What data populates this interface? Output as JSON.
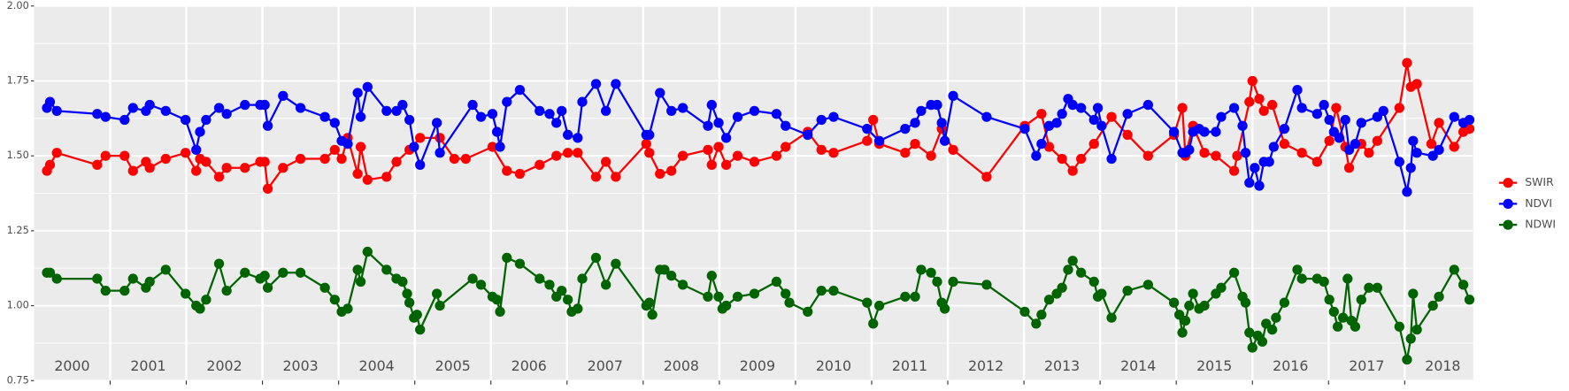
{
  "chart_data": {
    "type": "line",
    "xlim": [
      2000,
      2018.9
    ],
    "xticks": [
      2001,
      2002,
      2003,
      2004,
      2005,
      2006,
      2007,
      2008,
      2009,
      2010,
      2011,
      2012,
      2013,
      2014,
      2015,
      2016,
      2017,
      2018
    ],
    "year_labels": [
      "2000",
      "2001",
      "2002",
      "2003",
      "2004",
      "2005",
      "2006",
      "2007",
      "2008",
      "2009",
      "2010",
      "2011",
      "2012",
      "2013",
      "2014",
      "2015",
      "2016",
      "2017",
      "2018"
    ],
    "ylim": [
      0.75,
      2.0
    ],
    "yticks": [
      0.75,
      {
        "value": 1.0,
        "label": "1.00"
      },
      {
        "value": 1.25,
        "label": "1.25"
      },
      {
        "value": 1.5,
        "label": "1.50"
      },
      {
        "value": 1.75,
        "label": "1.75"
      },
      {
        "value": 2.0,
        "label": "2.00"
      }
    ],
    "y_minor_ticks": [
      0.875,
      1.125,
      1.375,
      1.625,
      1.875
    ],
    "grid": true,
    "legend": "right",
    "series": [
      {
        "name": "SWIR",
        "color": "#ff0000",
        "x": [
          2000.17,
          2000.21,
          2000.3,
          2000.83,
          2000.94,
          2001.19,
          2001.3,
          2001.47,
          2001.52,
          2001.73,
          2001.99,
          2002.13,
          2002.18,
          2002.26,
          2002.43,
          2002.53,
          2002.77,
          2002.97,
          2003.03,
          2003.07,
          2003.27,
          2003.5,
          2003.82,
          2003.95,
          2004.04,
          2004.12,
          2004.25,
          2004.29,
          2004.38,
          2004.63,
          2004.76,
          2004.93,
          2005.07,
          2005.33,
          2005.52,
          2005.67,
          2006.02,
          2006.21,
          2006.38,
          2006.64,
          2006.86,
          2007.01,
          2007.14,
          2007.38,
          2007.51,
          2007.64,
          2008.04,
          2008.08,
          2008.22,
          2008.37,
          2008.52,
          2008.85,
          2008.9,
          2008.99,
          2009.09,
          2009.24,
          2009.46,
          2009.75,
          2009.87,
          2010.16,
          2010.34,
          2010.5,
          2010.94,
          2011.02,
          2011.1,
          2011.44,
          2011.57,
          2011.78,
          2011.92,
          2012.07,
          2012.51,
          2013.01,
          2013.23,
          2013.33,
          2013.5,
          2013.64,
          2013.75,
          2013.92,
          2014.15,
          2014.36,
          2014.63,
          2014.97,
          2015.08,
          2015.12,
          2015.22,
          2015.37,
          2015.52,
          2015.76,
          2015.8,
          2015.96,
          2016.0,
          2016.09,
          2016.15,
          2016.26,
          2016.42,
          2016.65,
          2016.85,
          2017.01,
          2017.1,
          2017.22,
          2017.27,
          2017.43,
          2017.53,
          2017.64,
          2017.93,
          2018.03,
          2018.08,
          2018.16,
          2018.35,
          2018.45,
          2018.65,
          2018.77,
          2018.85
        ],
        "values": [
          1.45,
          1.47,
          1.51,
          1.47,
          1.5,
          1.5,
          1.45,
          1.48,
          1.46,
          1.49,
          1.51,
          1.45,
          1.49,
          1.48,
          1.43,
          1.46,
          1.46,
          1.48,
          1.48,
          1.39,
          1.46,
          1.49,
          1.49,
          1.52,
          1.49,
          1.56,
          1.44,
          1.53,
          1.42,
          1.43,
          1.48,
          1.52,
          1.56,
          1.56,
          1.49,
          1.49,
          1.53,
          1.45,
          1.44,
          1.47,
          1.5,
          1.51,
          1.51,
          1.43,
          1.48,
          1.43,
          1.54,
          1.51,
          1.44,
          1.45,
          1.5,
          1.52,
          1.47,
          1.53,
          1.47,
          1.5,
          1.48,
          1.5,
          1.53,
          1.58,
          1.52,
          1.51,
          1.55,
          1.62,
          1.54,
          1.51,
          1.54,
          1.5,
          1.59,
          1.52,
          1.43,
          1.6,
          1.64,
          1.53,
          1.49,
          1.45,
          1.49,
          1.54,
          1.63,
          1.57,
          1.5,
          1.57,
          1.66,
          1.5,
          1.6,
          1.51,
          1.5,
          1.45,
          1.5,
          1.68,
          1.75,
          1.69,
          1.65,
          1.67,
          1.54,
          1.51,
          1.48,
          1.55,
          1.66,
          1.53,
          1.46,
          1.54,
          1.51,
          1.55,
          1.66,
          1.81,
          1.73,
          1.74,
          1.54,
          1.61,
          1.53,
          1.58,
          1.59
        ]
      },
      {
        "name": "NDVI",
        "color": "#0000ff",
        "x": [
          2000.17,
          2000.21,
          2000.3,
          2000.83,
          2000.94,
          2001.19,
          2001.3,
          2001.47,
          2001.52,
          2001.73,
          2001.99,
          2002.13,
          2002.18,
          2002.26,
          2002.43,
          2002.53,
          2002.77,
          2002.97,
          2003.03,
          2003.07,
          2003.27,
          2003.5,
          2003.82,
          2003.95,
          2004.04,
          2004.12,
          2004.25,
          2004.29,
          2004.38,
          2004.63,
          2004.76,
          2004.84,
          2004.93,
          2004.99,
          2005.07,
          2005.29,
          2005.33,
          2005.76,
          2005.87,
          2006.02,
          2006.08,
          2006.12,
          2006.21,
          2006.38,
          2006.64,
          2006.77,
          2006.86,
          2006.93,
          2007.01,
          2007.14,
          2007.2,
          2007.38,
          2007.51,
          2007.64,
          2008.04,
          2008.08,
          2008.22,
          2008.37,
          2008.52,
          2008.85,
          2008.9,
          2008.99,
          2009.09,
          2009.24,
          2009.46,
          2009.75,
          2009.87,
          2010.16,
          2010.34,
          2010.5,
          2010.94,
          2011.1,
          2011.44,
          2011.57,
          2011.65,
          2011.78,
          2011.86,
          2011.92,
          2011.96,
          2012.07,
          2012.51,
          2013.01,
          2013.16,
          2013.23,
          2013.33,
          2013.43,
          2013.5,
          2013.58,
          2013.64,
          2013.75,
          2013.92,
          2013.97,
          2014.02,
          2014.15,
          2014.36,
          2014.63,
          2014.97,
          2015.08,
          2015.12,
          2015.17,
          2015.22,
          2015.3,
          2015.37,
          2015.52,
          2015.59,
          2015.76,
          2015.87,
          2015.91,
          2015.96,
          2016.03,
          2016.09,
          2016.15,
          2016.22,
          2016.28,
          2016.42,
          2016.59,
          2016.65,
          2016.85,
          2016.94,
          2017.01,
          2017.07,
          2017.14,
          2017.22,
          2017.27,
          2017.35,
          2017.43,
          2017.64,
          2017.72,
          2017.93,
          2018.03,
          2018.08,
          2018.11,
          2018.16,
          2018.37,
          2018.45,
          2018.65,
          2018.77,
          2018.85
        ],
        "values": [
          1.66,
          1.68,
          1.65,
          1.64,
          1.63,
          1.62,
          1.66,
          1.65,
          1.67,
          1.65,
          1.62,
          1.52,
          1.58,
          1.62,
          1.66,
          1.64,
          1.67,
          1.67,
          1.67,
          1.6,
          1.7,
          1.66,
          1.63,
          1.61,
          1.55,
          1.54,
          1.71,
          1.63,
          1.73,
          1.65,
          1.65,
          1.67,
          1.62,
          1.53,
          1.47,
          1.61,
          1.51,
          1.67,
          1.63,
          1.64,
          1.58,
          1.53,
          1.68,
          1.72,
          1.65,
          1.64,
          1.61,
          1.65,
          1.57,
          1.56,
          1.68,
          1.74,
          1.65,
          1.74,
          1.57,
          1.57,
          1.71,
          1.65,
          1.66,
          1.6,
          1.67,
          1.61,
          1.56,
          1.63,
          1.65,
          1.64,
          1.6,
          1.57,
          1.62,
          1.63,
          1.59,
          1.55,
          1.59,
          1.61,
          1.65,
          1.67,
          1.67,
          1.61,
          1.55,
          1.7,
          1.63,
          1.59,
          1.5,
          1.54,
          1.6,
          1.61,
          1.64,
          1.69,
          1.67,
          1.66,
          1.62,
          1.66,
          1.6,
          1.49,
          1.64,
          1.67,
          1.58,
          1.51,
          1.51,
          1.52,
          1.58,
          1.59,
          1.58,
          1.58,
          1.63,
          1.66,
          1.6,
          1.51,
          1.41,
          1.46,
          1.4,
          1.48,
          1.48,
          1.53,
          1.59,
          1.72,
          1.66,
          1.64,
          1.67,
          1.62,
          1.58,
          1.56,
          1.62,
          1.52,
          1.54,
          1.61,
          1.63,
          1.65,
          1.48,
          1.38,
          1.46,
          1.55,
          1.51,
          1.5,
          1.52,
          1.63,
          1.61,
          1.62
        ]
      },
      {
        "name": "NDWI",
        "color": "#006400",
        "x": [
          2000.17,
          2000.21,
          2000.3,
          2000.83,
          2000.94,
          2001.19,
          2001.3,
          2001.47,
          2001.52,
          2001.73,
          2001.99,
          2002.13,
          2002.18,
          2002.26,
          2002.43,
          2002.53,
          2002.77,
          2002.97,
          2003.03,
          2003.07,
          2003.27,
          2003.5,
          2003.82,
          2003.95,
          2004.04,
          2004.12,
          2004.25,
          2004.29,
          2004.38,
          2004.63,
          2004.76,
          2004.84,
          2004.9,
          2004.93,
          2004.99,
          2005.03,
          2005.07,
          2005.29,
          2005.33,
          2005.76,
          2005.87,
          2006.02,
          2006.08,
          2006.12,
          2006.21,
          2006.38,
          2006.64,
          2006.77,
          2006.86,
          2006.93,
          2007.01,
          2007.06,
          2007.14,
          2007.2,
          2007.38,
          2007.51,
          2007.64,
          2008.04,
          2008.08,
          2008.12,
          2008.22,
          2008.28,
          2008.37,
          2008.52,
          2008.85,
          2008.9,
          2008.99,
          2009.04,
          2009.09,
          2009.24,
          2009.46,
          2009.75,
          2009.87,
          2009.92,
          2010.16,
          2010.34,
          2010.5,
          2010.94,
          2011.02,
          2011.1,
          2011.44,
          2011.57,
          2011.65,
          2011.78,
          2011.86,
          2011.92,
          2011.96,
          2012.07,
          2012.51,
          2013.01,
          2013.16,
          2013.23,
          2013.33,
          2013.43,
          2013.5,
          2013.58,
          2013.64,
          2013.75,
          2013.92,
          2013.97,
          2014.02,
          2014.15,
          2014.36,
          2014.63,
          2014.97,
          2015.04,
          2015.08,
          2015.12,
          2015.17,
          2015.22,
          2015.3,
          2015.37,
          2015.52,
          2015.59,
          2015.76,
          2015.87,
          2015.91,
          2015.96,
          2016.0,
          2016.07,
          2016.13,
          2016.18,
          2016.26,
          2016.31,
          2016.42,
          2016.59,
          2016.65,
          2016.85,
          2016.94,
          2017.01,
          2017.07,
          2017.12,
          2017.19,
          2017.25,
          2017.3,
          2017.35,
          2017.43,
          2017.53,
          2017.64,
          2017.93,
          2018.03,
          2018.08,
          2018.11,
          2018.16,
          2018.37,
          2018.45,
          2018.65,
          2018.77,
          2018.85
        ],
        "values": [
          1.11,
          1.11,
          1.09,
          1.09,
          1.05,
          1.05,
          1.09,
          1.06,
          1.08,
          1.12,
          1.04,
          1.0,
          0.99,
          1.02,
          1.14,
          1.05,
          1.11,
          1.09,
          1.1,
          1.06,
          1.11,
          1.11,
          1.06,
          1.02,
          0.98,
          0.99,
          1.12,
          1.08,
          1.18,
          1.12,
          1.09,
          1.08,
          1.04,
          1.01,
          0.96,
          0.97,
          0.92,
          1.04,
          1.0,
          1.09,
          1.07,
          1.03,
          1.02,
          0.98,
          1.16,
          1.14,
          1.09,
          1.07,
          1.03,
          1.05,
          1.02,
          0.98,
          0.99,
          1.09,
          1.16,
          1.07,
          1.14,
          1.0,
          1.01,
          0.97,
          1.12,
          1.12,
          1.1,
          1.07,
          1.03,
          1.1,
          1.03,
          0.99,
          1.0,
          1.03,
          1.04,
          1.08,
          1.04,
          1.01,
          0.98,
          1.05,
          1.05,
          1.01,
          0.94,
          1.0,
          1.03,
          1.03,
          1.12,
          1.11,
          1.08,
          1.01,
          0.99,
          1.08,
          1.07,
          0.98,
          0.94,
          0.97,
          1.02,
          1.04,
          1.06,
          1.12,
          1.15,
          1.11,
          1.08,
          1.03,
          1.04,
          0.96,
          1.05,
          1.07,
          1.01,
          0.97,
          0.91,
          0.95,
          1.0,
          1.04,
          0.99,
          1.0,
          1.04,
          1.06,
          1.11,
          1.03,
          1.01,
          0.91,
          0.86,
          0.9,
          0.88,
          0.94,
          0.92,
          0.96,
          1.01,
          1.12,
          1.09,
          1.09,
          1.08,
          1.02,
          0.98,
          0.93,
          0.96,
          1.09,
          0.95,
          0.93,
          1.02,
          1.06,
          1.06,
          0.93,
          0.82,
          0.89,
          1.04,
          0.92,
          1.0,
          1.03,
          1.12,
          1.07,
          1.02
        ]
      }
    ]
  }
}
